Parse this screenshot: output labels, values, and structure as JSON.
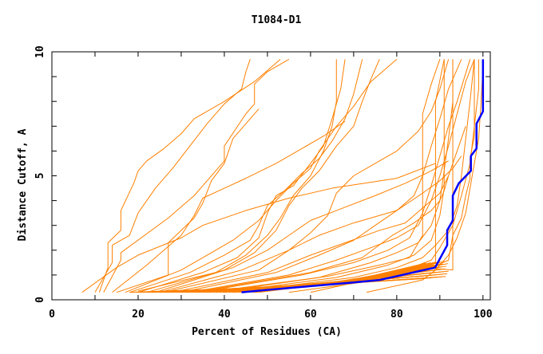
{
  "chart_data": {
    "type": "line",
    "title": "T1084-D1",
    "xlabel": "Percent of Residues (CA)",
    "ylabel": "Distance Cutoff, A",
    "xlim": [
      0,
      101.7
    ],
    "ylim": [
      0,
      10
    ],
    "xticks": [
      0,
      20,
      40,
      60,
      80,
      100
    ],
    "yticks": [
      0,
      5,
      10
    ],
    "grid": false,
    "colors": {
      "highlight": "#0000ff",
      "others": "#ff8000"
    },
    "highlight": [
      [
        44,
        0.3
      ],
      [
        50,
        0.4
      ],
      [
        60,
        0.55
      ],
      [
        70,
        0.7
      ],
      [
        76,
        0.8
      ],
      [
        80,
        0.95
      ],
      [
        85,
        1.15
      ],
      [
        88.9,
        1.3
      ],
      [
        91.7,
        2.2
      ],
      [
        91.7,
        2.8
      ],
      [
        93,
        3.2
      ],
      [
        93,
        4.2
      ],
      [
        94.4,
        4.7
      ],
      [
        97.2,
        5.2
      ],
      [
        97.2,
        5.8
      ],
      [
        98.5,
        6.1
      ],
      [
        98.5,
        7.1
      ],
      [
        100,
        7.6
      ],
      [
        100,
        9.7
      ]
    ],
    "others": [
      [
        [
          11,
          0.3
        ],
        [
          13,
          1.3
        ],
        [
          13,
          2.3
        ],
        [
          16,
          2.8
        ],
        [
          16,
          3.6
        ],
        [
          19,
          4.7
        ],
        [
          20,
          5.2
        ],
        [
          22,
          5.6
        ],
        [
          26,
          6.1
        ],
        [
          30,
          6.7
        ],
        [
          33,
          7.3
        ],
        [
          40,
          8
        ],
        [
          47,
          8.8
        ],
        [
          53,
          9.7
        ]
      ],
      [
        [
          7,
          0.3
        ],
        [
          15,
          1.3
        ],
        [
          20,
          1.8
        ],
        [
          30,
          2.5
        ],
        [
          35,
          3
        ],
        [
          45,
          3.6
        ],
        [
          55,
          4.1
        ],
        [
          65,
          4.5
        ],
        [
          80,
          4.9
        ],
        [
          89,
          5.5
        ]
      ],
      [
        [
          12,
          0.3
        ],
        [
          16,
          1.6
        ],
        [
          16,
          1.9
        ],
        [
          27,
          3.3
        ],
        [
          33,
          4.2
        ],
        [
          38,
          5.2
        ],
        [
          40,
          5.6
        ],
        [
          40,
          6.2
        ],
        [
          45,
          7.5
        ],
        [
          47,
          7.9
        ],
        [
          47,
          8.7
        ],
        [
          50,
          9.2
        ],
        [
          55,
          9.7
        ]
      ],
      [
        [
          10,
          0.3
        ],
        [
          14,
          1.5
        ],
        [
          14,
          2.2
        ],
        [
          18,
          2.6
        ],
        [
          20,
          3.5
        ],
        [
          24,
          4.5
        ],
        [
          28,
          5.3
        ],
        [
          32,
          6.2
        ],
        [
          36,
          7.1
        ],
        [
          40,
          7.9
        ],
        [
          44,
          8.5
        ],
        [
          45,
          9.2
        ],
        [
          46,
          9.7
        ]
      ],
      [
        [
          14,
          0.3
        ],
        [
          22,
          1.4
        ],
        [
          26,
          2
        ],
        [
          30,
          2.6
        ],
        [
          33,
          3.4
        ],
        [
          35,
          4.1
        ],
        [
          40,
          4.5
        ],
        [
          45,
          4.9
        ],
        [
          52,
          5.5
        ],
        [
          57,
          6
        ],
        [
          63,
          6.6
        ],
        [
          68,
          7.2
        ]
      ],
      [
        [
          15,
          0.3
        ],
        [
          27,
          1
        ],
        [
          27,
          2.3
        ],
        [
          33,
          3.3
        ],
        [
          35,
          3.9
        ],
        [
          37,
          4.8
        ],
        [
          40,
          5.5
        ],
        [
          42,
          6.5
        ],
        [
          45,
          7.1
        ],
        [
          48,
          7.7
        ]
      ],
      [
        [
          17,
          0.3
        ],
        [
          30,
          1.2
        ],
        [
          36,
          1.8
        ],
        [
          42,
          2.4
        ],
        [
          48,
          3.2
        ],
        [
          52,
          4
        ],
        [
          56,
          4.7
        ],
        [
          60,
          5.3
        ],
        [
          62,
          6
        ],
        [
          66,
          7
        ],
        [
          70,
          7.8
        ],
        [
          74,
          8.8
        ],
        [
          80,
          9.7
        ]
      ],
      [
        [
          18,
          0.3
        ],
        [
          32,
          1.1
        ],
        [
          40,
          1.8
        ],
        [
          46,
          2.4
        ],
        [
          48,
          3
        ],
        [
          50,
          3.8
        ],
        [
          54,
          4.4
        ],
        [
          58,
          5.1
        ],
        [
          62,
          5.7
        ],
        [
          65,
          6.4
        ],
        [
          68,
          7.3
        ],
        [
          70,
          8.3
        ],
        [
          72,
          9.7
        ]
      ],
      [
        [
          20,
          0.3
        ],
        [
          35,
          1.1
        ],
        [
          43,
          1.7
        ],
        [
          48,
          2.5
        ],
        [
          50,
          3.5
        ],
        [
          52,
          4.2
        ],
        [
          56,
          4.6
        ],
        [
          60,
          5.5
        ],
        [
          63,
          6.2
        ],
        [
          65,
          7.3
        ],
        [
          67,
          8.5
        ],
        [
          68,
          9.7
        ]
      ],
      [
        [
          20,
          0.35
        ],
        [
          38,
          1.1
        ],
        [
          45,
          1.8
        ],
        [
          50,
          2.6
        ],
        [
          53,
          3.3
        ],
        [
          56,
          4.2
        ],
        [
          60,
          5
        ],
        [
          63,
          6
        ],
        [
          65,
          7
        ],
        [
          66,
          8
        ],
        [
          66,
          9.7
        ]
      ],
      [
        [
          22,
          0.3
        ],
        [
          40,
          1.2
        ],
        [
          47,
          1.9
        ],
        [
          52,
          2.8
        ],
        [
          55,
          3.8
        ],
        [
          58,
          4.5
        ],
        [
          62,
          5.2
        ],
        [
          66,
          6.2
        ],
        [
          70,
          7
        ],
        [
          72,
          8
        ],
        [
          74,
          8.9
        ],
        [
          76,
          9.7
        ]
      ],
      [
        [
          24,
          0.3
        ],
        [
          42,
          1.3
        ],
        [
          50,
          2
        ],
        [
          55,
          2.6
        ],
        [
          60,
          3.2
        ],
        [
          66,
          3.6
        ],
        [
          75,
          4.2
        ],
        [
          82,
          4.7
        ],
        [
          88,
          5.2
        ],
        [
          92,
          5.6
        ]
      ],
      [
        [
          25,
          0.3
        ],
        [
          44,
          1.2
        ],
        [
          55,
          2
        ],
        [
          62,
          2.6
        ],
        [
          70,
          3.1
        ],
        [
          80,
          3.6
        ],
        [
          86,
          4.3
        ],
        [
          90,
          4.8
        ],
        [
          93,
          5.3
        ],
        [
          95,
          5.8
        ]
      ],
      [
        [
          26,
          0.3
        ],
        [
          48,
          1.2
        ],
        [
          55,
          2
        ],
        [
          60,
          2.7
        ],
        [
          64,
          3.4
        ],
        [
          66,
          4.3
        ],
        [
          70,
          5
        ],
        [
          75,
          5.5
        ],
        [
          80,
          6
        ],
        [
          85,
          6.8
        ],
        [
          88,
          7.6
        ],
        [
          90,
          8.5
        ],
        [
          92,
          9.7
        ]
      ],
      [
        [
          28,
          0.3
        ],
        [
          50,
          1.1
        ],
        [
          60,
          1.8
        ],
        [
          68,
          2.3
        ],
        [
          76,
          2.8
        ],
        [
          82,
          3.1
        ],
        [
          86,
          3.7
        ],
        [
          90,
          4.3
        ],
        [
          92,
          5
        ],
        [
          94,
          6
        ],
        [
          96,
          7
        ]
      ],
      [
        [
          30,
          0.3
        ],
        [
          52,
          1.1
        ],
        [
          62,
          1.8
        ],
        [
          70,
          2.4
        ],
        [
          75,
          3
        ],
        [
          80,
          3.6
        ],
        [
          84,
          4.2
        ],
        [
          86,
          5
        ],
        [
          88,
          6.2
        ],
        [
          90,
          7.3
        ],
        [
          92,
          8.5
        ],
        [
          95,
          9.7
        ]
      ],
      [
        [
          32,
          0.3
        ],
        [
          55,
          1
        ],
        [
          66,
          1.6
        ],
        [
          74,
          2.1
        ],
        [
          80,
          2.5
        ],
        [
          85,
          3
        ],
        [
          88,
          4
        ],
        [
          90,
          5
        ],
        [
          92,
          6.2
        ],
        [
          94,
          7.5
        ],
        [
          96,
          8.8
        ],
        [
          98,
          9.7
        ]
      ],
      [
        [
          34,
          0.3
        ],
        [
          58,
          1
        ],
        [
          70,
          1.5
        ],
        [
          78,
          2
        ],
        [
          83,
          2.5
        ],
        [
          86,
          3.5
        ],
        [
          88,
          4.6
        ],
        [
          90,
          5.8
        ],
        [
          92,
          7
        ],
        [
          94,
          8
        ],
        [
          97,
          9.7
        ]
      ],
      [
        [
          36,
          0.3
        ],
        [
          62,
          0.9
        ],
        [
          74,
          1.5
        ],
        [
          80,
          1.9
        ],
        [
          85,
          2.3
        ],
        [
          88,
          3
        ],
        [
          90,
          4
        ],
        [
          91,
          5.2
        ],
        [
          92,
          6.5
        ],
        [
          93,
          8
        ],
        [
          93,
          9.7
        ]
      ],
      [
        [
          40,
          0.3
        ],
        [
          66,
          0.9
        ],
        [
          78,
          1.4
        ],
        [
          84,
          1.8
        ],
        [
          88,
          2.4
        ],
        [
          90,
          3.4
        ],
        [
          91,
          4.5
        ],
        [
          91,
          6
        ],
        [
          91,
          8
        ],
        [
          91,
          9.7
        ]
      ],
      [
        [
          42,
          0.3
        ],
        [
          70,
          0.9
        ],
        [
          80,
          1.3
        ],
        [
          86,
          1.7
        ],
        [
          89,
          2.2
        ],
        [
          92,
          2.8
        ],
        [
          94,
          3.8
        ],
        [
          95,
          5
        ],
        [
          96,
          6.5
        ],
        [
          97,
          8
        ],
        [
          98,
          9.7
        ]
      ],
      [
        [
          45,
          0.3
        ],
        [
          72,
          0.8
        ],
        [
          82,
          1.2
        ],
        [
          88,
          1.6
        ],
        [
          90,
          2.1
        ],
        [
          93,
          3
        ],
        [
          95,
          4.2
        ],
        [
          97,
          5.5
        ],
        [
          98,
          7
        ],
        [
          99,
          8.5
        ],
        [
          99,
          9.7
        ]
      ],
      [
        [
          73,
          0.3
        ],
        [
          86,
          0.8
        ],
        [
          89,
          1.2
        ],
        [
          92,
          1.8
        ],
        [
          94,
          2.5
        ],
        [
          96,
          3.5
        ],
        [
          97,
          4.5
        ],
        [
          98,
          5.5
        ],
        [
          99,
          6.5
        ],
        [
          99.5,
          7.8
        ],
        [
          100,
          9.4
        ]
      ],
      [
        [
          55,
          0.3
        ],
        [
          80,
          0.9
        ],
        [
          88,
          1.3
        ],
        [
          92,
          1.6
        ],
        [
          93,
          2.6
        ],
        [
          95,
          3.3
        ],
        [
          96,
          4.2
        ],
        [
          97,
          4.9
        ],
        [
          97,
          5.7
        ],
        [
          98,
          6.6
        ],
        [
          98,
          9.7
        ]
      ],
      [
        [
          60,
          0.3
        ],
        [
          86,
          1.3
        ],
        [
          93,
          1.2
        ],
        [
          93,
          3
        ],
        [
          93,
          5
        ],
        [
          93,
          7
        ],
        [
          93,
          9.7
        ]
      ],
      [
        [
          47,
          0.3
        ],
        [
          84,
          1.1
        ],
        [
          89,
          1.5
        ],
        [
          89,
          3
        ],
        [
          89,
          5.6
        ],
        [
          89,
          8
        ],
        [
          91,
          9.7
        ]
      ],
      [
        [
          38,
          0.3
        ],
        [
          64,
          0.95
        ],
        [
          76,
          1.4
        ],
        [
          83,
          1.7
        ],
        [
          86,
          2.6
        ],
        [
          86,
          4.5
        ],
        [
          86,
          6
        ],
        [
          86,
          7.5
        ],
        [
          88,
          8.7
        ],
        [
          90,
          9.7
        ]
      ],
      [
        [
          33,
          0.3
        ],
        [
          60,
          1.1
        ],
        [
          72,
          1.7
        ],
        [
          79,
          2.6
        ],
        [
          84,
          3.1
        ],
        [
          88,
          3.6
        ],
        [
          90,
          4
        ],
        [
          91,
          4.4
        ],
        [
          92,
          5
        ]
      ]
    ],
    "bundle": {
      "x_start_range": [
        18,
        48
      ],
      "y_start": 0.3,
      "x_end_range": [
        86,
        92
      ],
      "y_end_range": [
        0.85,
        1.55
      ],
      "count": 40
    }
  }
}
